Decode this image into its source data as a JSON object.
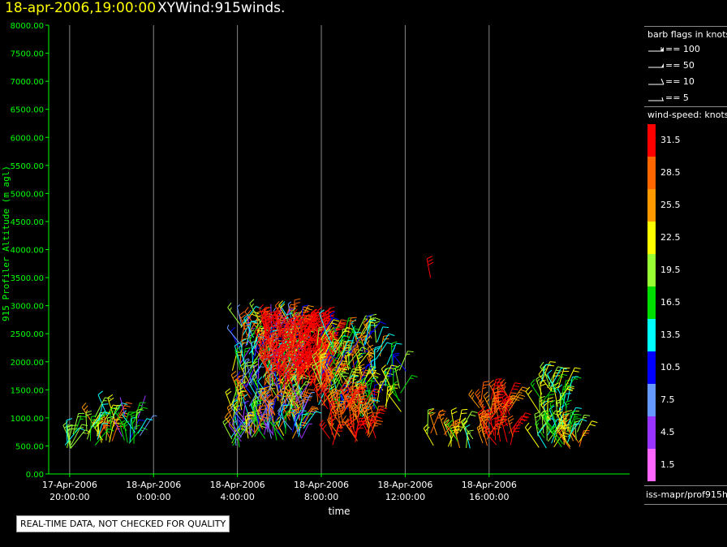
{
  "header": {
    "datetime": "18-apr-2006,19:00:00",
    "title": "XYWind:915winds."
  },
  "barb_legend": {
    "title": "barb flags in knots",
    "items": [
      {
        "label": "== 100"
      },
      {
        "label": "== 50"
      },
      {
        "label": "== 10"
      },
      {
        "label": "== 5"
      }
    ]
  },
  "speed_legend": {
    "title": "wind-speed: knots",
    "bins": [
      {
        "label": "31.5",
        "color": "#ff0000"
      },
      {
        "label": "28.5",
        "color": "#ff6600"
      },
      {
        "label": "25.5",
        "color": "#ff9900"
      },
      {
        "label": "22.5",
        "color": "#ffff00"
      },
      {
        "label": "19.5",
        "color": "#99ff33"
      },
      {
        "label": "16.5",
        "color": "#00dd00"
      },
      {
        "label": "13.5",
        "color": "#00ffff"
      },
      {
        "label": "10.5",
        "color": "#0000ff"
      },
      {
        "label": "7.5",
        "color": "#6699ff"
      },
      {
        "label": "4.5",
        "color": "#9933ff"
      },
      {
        "label": "1.5",
        "color": "#ff66ff"
      }
    ]
  },
  "source_label": "iss-mapr/prof915h",
  "disclaimer": "REAL-TIME DATA, NOT CHECKED FOR QUALITY",
  "chart_data": {
    "type": "scatter",
    "title": "18-apr-2006,19:00:00  XYWind:915winds.",
    "xlabel": "time",
    "ylabel": "915 Profiler Altitude (m agl)",
    "xlim": [
      -5,
      22.7
    ],
    "ylim": [
      0,
      8000
    ],
    "x_units": "hours relative to 18-Apr-2006 00:00",
    "x_ticks": [
      {
        "x": -4,
        "label": [
          "17-Apr-2006",
          "20:00:00"
        ]
      },
      {
        "x": 0,
        "label": [
          "18-Apr-2006",
          "0:00:00"
        ]
      },
      {
        "x": 4,
        "label": [
          "18-Apr-2006",
          "4:00:00"
        ]
      },
      {
        "x": 8,
        "label": [
          "18-Apr-2006",
          "8:00:00"
        ]
      },
      {
        "x": 12,
        "label": [
          "18-Apr-2006",
          "12:00:00"
        ]
      },
      {
        "x": 16,
        "label": [
          "18-Apr-2006",
          "16:00:00"
        ]
      }
    ],
    "y_ticks": [
      "0.00",
      "500.00",
      "1000.00",
      "1500.00",
      "2000.00",
      "2500.00",
      "3000.00",
      "3500.00",
      "4000.00",
      "4500.00",
      "5000.00",
      "5500.00",
      "6000.00",
      "6500.00",
      "7000.00",
      "7500.00",
      "8000.00"
    ],
    "vertical_grid": true,
    "legend": "right",
    "clusters": [
      {
        "x_range": [
          -4.3,
          -3.6
        ],
        "alt_range": [
          450,
          750
        ],
        "speed": [
          13,
          22
        ],
        "n": 10
      },
      {
        "x_range": [
          -3.2,
          -1.8
        ],
        "alt_range": [
          500,
          1050
        ],
        "speed": [
          14,
          30
        ],
        "n": 30
      },
      {
        "x_range": [
          -1.5,
          -0.6
        ],
        "alt_range": [
          500,
          1050
        ],
        "speed": [
          3,
          20
        ],
        "n": 18
      },
      {
        "x_range": [
          3.7,
          4.2
        ],
        "alt_range": [
          300,
          1900
        ],
        "speed": [
          5,
          30
        ],
        "n": 24
      },
      {
        "x_range": [
          4.1,
          7.2
        ],
        "alt_range": [
          600,
          2700
        ],
        "speed": [
          3,
          30
        ],
        "n": 320
      },
      {
        "x_range": [
          5.3,
          8.6
        ],
        "alt_range": [
          1500,
          2600
        ],
        "speed": [
          29,
          40
        ],
        "n": 190
      },
      {
        "x_range": [
          7.8,
          10.8
        ],
        "alt_range": [
          1000,
          2500
        ],
        "speed": [
          10,
          30
        ],
        "n": 150
      },
      {
        "x_range": [
          8.2,
          10.6
        ],
        "alt_range": [
          500,
          1300
        ],
        "speed": [
          26,
          35
        ],
        "n": 60
      },
      {
        "x_range": [
          10.8,
          12.1
        ],
        "alt_range": [
          900,
          2000
        ],
        "speed": [
          10,
          24
        ],
        "n": 20
      },
      {
        "x_range": [
          12.9,
          13.4
        ],
        "alt_range": [
          3400,
          3500
        ],
        "speed": [
          31,
          34
        ],
        "n": 1
      },
      {
        "x_range": [
          12.8,
          15.3
        ],
        "alt_range": [
          450,
          750
        ],
        "speed": [
          14,
          30
        ],
        "n": 20
      },
      {
        "x_range": [
          15.5,
          17.2
        ],
        "alt_range": [
          500,
          1350
        ],
        "speed": [
          25,
          33
        ],
        "n": 50
      },
      {
        "x_range": [
          18.3,
          19.8
        ],
        "alt_range": [
          450,
          1650
        ],
        "speed": [
          12,
          24
        ],
        "n": 60
      },
      {
        "x_range": [
          19.5,
          20.4
        ],
        "alt_range": [
          450,
          800
        ],
        "speed": [
          14,
          30
        ],
        "n": 18
      }
    ]
  }
}
